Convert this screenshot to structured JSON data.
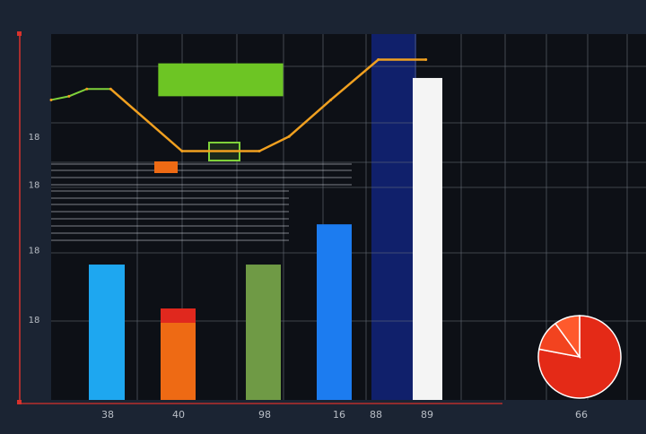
{
  "chart_data": {
    "type": "bar",
    "title": "",
    "xlabel": "",
    "ylabel": "",
    "ylim": [
      0,
      100
    ],
    "grid": true,
    "colors": {
      "background": "#1b2433",
      "plot": "#0d1016",
      "grid": "#6f7680",
      "axis": "#d8322c",
      "band": "#10206b",
      "tick_text": "#b9bec6"
    },
    "y_ticks": [
      {
        "value": 22,
        "label": "18"
      },
      {
        "value": 41,
        "label": "18"
      },
      {
        "value": 59,
        "label": "18"
      },
      {
        "value": 72,
        "label": "18"
      }
    ],
    "x_tick_labels": [
      "38",
      "40",
      "98",
      "16",
      "88",
      "89",
      "66"
    ],
    "bars": [
      {
        "name": "bar-1",
        "value": 37,
        "color": "#1ea7f0"
      },
      {
        "name": "bar-2",
        "value": 25,
        "color": "#ee6a14",
        "cap": "#e0281e"
      },
      {
        "name": "bar-3",
        "value": 37,
        "color": "#6f9a45"
      },
      {
        "name": "bar-4",
        "value": 48,
        "color": "#1c7cf0"
      },
      {
        "name": "bar-5",
        "value": 88,
        "color": "#f4f4f4"
      }
    ],
    "line": {
      "color": "#f0a020",
      "start_color": "#7fd23a",
      "points": [
        [
          0,
          82
        ],
        [
          3,
          83
        ],
        [
          6,
          85
        ],
        [
          10,
          85
        ],
        [
          22,
          68
        ],
        [
          35,
          68
        ],
        [
          40,
          72
        ],
        [
          47,
          82
        ],
        [
          55,
          93
        ],
        [
          63,
          93
        ]
      ]
    },
    "highlight_bar": {
      "from_x": 18,
      "to_x": 39,
      "y_low": 83,
      "y_high": 92,
      "color": "#6dc524"
    },
    "pie": {
      "values": [
        78,
        12,
        10
      ],
      "colors": [
        "#e42a17",
        "#f2431f",
        "#ff5a2c"
      ]
    }
  }
}
